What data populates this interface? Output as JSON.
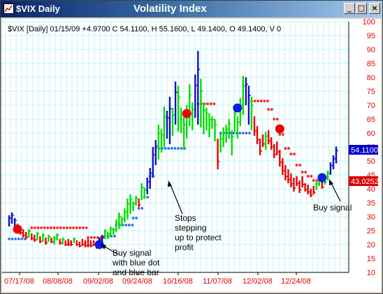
{
  "window": {
    "title": "$VIX Daily",
    "chart_title": "Volatility Index",
    "controls": {
      "minimize": "_",
      "maximize": "□",
      "close": "×"
    }
  },
  "chart_data": {
    "type": "line",
    "info_line": "$VIX [Daily] 01/15/09 +4.9700 C 54.1100, H 55.1600, L 49.1400, O 49.1400, V 0",
    "y_ticks": [
      10,
      15,
      20,
      25,
      30,
      35,
      40,
      45,
      50,
      55,
      60,
      65,
      70,
      75,
      80,
      85,
      90,
      95,
      100
    ],
    "ylim": [
      10,
      100
    ],
    "x_ticks": [
      "07/17/08",
      "08/08/08",
      "09/02/08",
      "09/24/08",
      "10/16/08",
      "11/07/08",
      "12/02/08",
      "12/24/08"
    ],
    "last_price_label": "54.1100",
    "stop_label": "43.0252",
    "colors": {
      "up": "#00dd00",
      "down": "#ee0000",
      "signal": "#1010c8",
      "stop_up": "#2f6ff0",
      "stop_down": "#ff2020",
      "grid": "#bff4f4",
      "axis_text": "#e00000"
    },
    "annotations": [
      {
        "text": "Buy signal\nwith blue dot\nand blue bar"
      },
      {
        "text": "Stops\nstepping\nup to protect\nprofit"
      },
      {
        "text": "Buy signal"
      }
    ],
    "bars": [
      [
        30.5,
        26.5,
        "b"
      ],
      [
        31.5,
        27.5,
        "b"
      ],
      [
        29.5,
        26.0,
        "b"
      ],
      [
        27.5,
        24.5,
        "r"
      ],
      [
        26.5,
        23.5,
        "r"
      ],
      [
        25.5,
        22.5,
        "r"
      ],
      [
        24.5,
        22.0,
        "r"
      ],
      [
        25.5,
        22.5,
        "g"
      ],
      [
        24.0,
        21.5,
        "r"
      ],
      [
        23.5,
        21.0,
        "r"
      ],
      [
        24.5,
        21.5,
        "g"
      ],
      [
        23.0,
        20.5,
        "r"
      ],
      [
        24.0,
        21.0,
        "g"
      ],
      [
        22.5,
        20.0,
        "r"
      ],
      [
        23.5,
        21.0,
        "g"
      ],
      [
        22.5,
        20.5,
        "r"
      ],
      [
        23.0,
        20.0,
        "g"
      ],
      [
        24.0,
        21.5,
        "g"
      ],
      [
        22.0,
        20.0,
        "r"
      ],
      [
        22.5,
        20.0,
        "g"
      ],
      [
        21.5,
        19.5,
        "r"
      ],
      [
        22.0,
        19.5,
        "r"
      ],
      [
        21.5,
        19.5,
        "r"
      ],
      [
        22.5,
        20.5,
        "g"
      ],
      [
        21.5,
        19.5,
        "r"
      ],
      [
        21.0,
        19.0,
        "r"
      ],
      [
        22.0,
        19.5,
        "r"
      ],
      [
        21.5,
        19.0,
        "r"
      ],
      [
        22.0,
        19.0,
        "r"
      ],
      [
        21.5,
        19.0,
        "r"
      ],
      [
        21.5,
        19.5,
        "r"
      ],
      [
        20.5,
        18.5,
        "r"
      ],
      [
        22.5,
        19.5,
        "b"
      ],
      [
        23.5,
        20.5,
        "b"
      ],
      [
        25.5,
        22.0,
        "g"
      ],
      [
        24.5,
        22.0,
        "g"
      ],
      [
        26.5,
        22.5,
        "g"
      ],
      [
        26.0,
        23.5,
        "g"
      ],
      [
        29.0,
        24.5,
        "g"
      ],
      [
        31.5,
        25.5,
        "g"
      ],
      [
        30.0,
        26.5,
        "g"
      ],
      [
        33.0,
        28.0,
        "g"
      ],
      [
        36.5,
        29.0,
        "g"
      ],
      [
        38.0,
        31.0,
        "g"
      ],
      [
        35.5,
        32.0,
        "g"
      ],
      [
        37.5,
        34.0,
        "g"
      ],
      [
        36.5,
        33.5,
        "r"
      ],
      [
        42.0,
        36.0,
        "g"
      ],
      [
        40.5,
        36.5,
        "g"
      ],
      [
        44.0,
        38.0,
        "b"
      ],
      [
        47.5,
        40.0,
        "b"
      ],
      [
        55.0,
        44.0,
        "b"
      ],
      [
        57.5,
        48.5,
        "b"
      ],
      [
        63.0,
        50.5,
        "g"
      ],
      [
        61.5,
        53.0,
        "g"
      ],
      [
        69.5,
        55.0,
        "g"
      ],
      [
        68.0,
        58.0,
        "b"
      ],
      [
        73.0,
        56.0,
        "b"
      ],
      [
        69.0,
        59.0,
        "g"
      ],
      [
        78.5,
        63.0,
        "b"
      ],
      [
        77.0,
        60.5,
        "g"
      ],
      [
        69.0,
        60.0,
        "g"
      ],
      [
        66.0,
        54.0,
        "g"
      ],
      [
        70.0,
        58.0,
        "g"
      ],
      [
        77.5,
        62.5,
        "g"
      ],
      [
        71.0,
        61.0,
        "g"
      ],
      [
        81.0,
        65.5,
        "b"
      ],
      [
        89.5,
        63.0,
        "b"
      ],
      [
        79.5,
        62.0,
        "g"
      ],
      [
        71.0,
        59.5,
        "g"
      ],
      [
        69.0,
        61.0,
        "g"
      ],
      [
        67.0,
        58.5,
        "g"
      ],
      [
        66.0,
        61.5,
        "g"
      ],
      [
        65.0,
        57.0,
        "g"
      ],
      [
        58.0,
        47.0,
        "r"
      ],
      [
        59.5,
        53.0,
        "g"
      ],
      [
        62.0,
        55.0,
        "g"
      ],
      [
        63.0,
        56.5,
        "g"
      ],
      [
        65.0,
        58.0,
        "g"
      ],
      [
        61.0,
        52.0,
        "g"
      ],
      [
        69.0,
        60.5,
        "g"
      ],
      [
        66.0,
        58.0,
        "g"
      ],
      [
        72.5,
        62.5,
        "g"
      ],
      [
        80.5,
        66.5,
        "g"
      ],
      [
        80.0,
        70.0,
        "b"
      ],
      [
        77.0,
        63.0,
        "b"
      ],
      [
        73.0,
        61.0,
        "g"
      ],
      [
        66.0,
        59.0,
        "r"
      ],
      [
        62.5,
        56.0,
        "r"
      ],
      [
        58.0,
        52.0,
        "r"
      ],
      [
        59.5,
        55.0,
        "r"
      ],
      [
        60.5,
        54.0,
        "g"
      ],
      [
        61.0,
        56.0,
        "r"
      ],
      [
        58.5,
        54.0,
        "r"
      ],
      [
        56.0,
        51.0,
        "r"
      ],
      [
        57.0,
        52.0,
        "r"
      ],
      [
        54.0,
        48.0,
        "r"
      ],
      [
        51.0,
        45.0,
        "r"
      ],
      [
        48.5,
        43.0,
        "r"
      ],
      [
        47.0,
        42.0,
        "r"
      ],
      [
        45.5,
        40.5,
        "r"
      ],
      [
        44.0,
        39.0,
        "r"
      ],
      [
        44.5,
        41.0,
        "r"
      ],
      [
        43.0,
        38.5,
        "r"
      ],
      [
        44.5,
        40.5,
        "r"
      ],
      [
        42.0,
        39.0,
        "r"
      ],
      [
        41.5,
        38.0,
        "r"
      ],
      [
        40.0,
        37.0,
        "r"
      ],
      [
        41.0,
        38.0,
        "r"
      ],
      [
        42.5,
        39.5,
        "g"
      ],
      [
        43.5,
        41.0,
        "g"
      ],
      [
        42.5,
        40.0,
        "r"
      ],
      [
        45.0,
        41.5,
        "g"
      ],
      [
        46.5,
        43.0,
        "g"
      ],
      [
        49.5,
        45.0,
        "b"
      ],
      [
        52.0,
        47.0,
        "b"
      ],
      [
        55.16,
        49.14,
        "b"
      ]
    ],
    "stops": [
      [
        0,
        5,
        22.0,
        "up"
      ],
      [
        8,
        27,
        26.0,
        "down"
      ],
      [
        28,
        33,
        22.5,
        "down"
      ],
      [
        34,
        37,
        23.0,
        "up"
      ],
      [
        38,
        43,
        27.0,
        "up"
      ],
      [
        44,
        45,
        29.5,
        "up"
      ],
      [
        46,
        47,
        33.0,
        "up"
      ],
      [
        48,
        49,
        37.0,
        "up"
      ],
      [
        50,
        51,
        44.5,
        "up"
      ],
      [
        52,
        62,
        54.5,
        "up"
      ],
      [
        67,
        72,
        70.5,
        "down"
      ],
      [
        75,
        85,
        60.0,
        "up"
      ],
      [
        86,
        91,
        71.5,
        "down"
      ],
      [
        92,
        93,
        68.5,
        "down"
      ],
      [
        94,
        95,
        65.0,
        "down"
      ],
      [
        96,
        97,
        59.5,
        "down"
      ],
      [
        98,
        99,
        54.5,
        "down"
      ],
      [
        100,
        101,
        52.5,
        "down"
      ],
      [
        102,
        103,
        48.5,
        "down"
      ],
      [
        104,
        105,
        46.0,
        "down"
      ],
      [
        106,
        107,
        44.5,
        "down"
      ],
      [
        108,
        111,
        43.0,
        "down"
      ],
      [
        111,
        112,
        42.5,
        "up"
      ]
    ],
    "signal_dots": [
      [
        3,
        25.5,
        "red"
      ],
      [
        32,
        20.0,
        "blue"
      ],
      [
        63,
        67.0,
        "red"
      ],
      [
        81,
        69.0,
        "blue"
      ],
      [
        96,
        61.5,
        "red"
      ],
      [
        111,
        44.0,
        "blue"
      ]
    ]
  }
}
